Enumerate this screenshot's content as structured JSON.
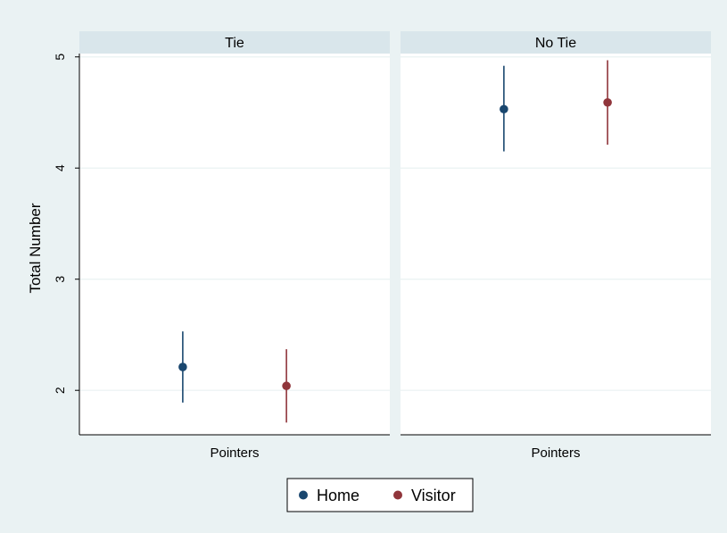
{
  "chart_data": {
    "type": "scatter",
    "subtype": "point-range",
    "panels": [
      {
        "title": "Tie",
        "xlabel": "Pointers",
        "points": [
          {
            "series": "Home",
            "y": 2.21,
            "low": 1.89,
            "high": 2.53
          },
          {
            "series": "Visitor",
            "y": 2.04,
            "low": 1.71,
            "high": 2.37
          }
        ]
      },
      {
        "title": "No Tie",
        "xlabel": "Pointers",
        "points": [
          {
            "series": "Home",
            "y": 4.53,
            "low": 4.15,
            "high": 4.92
          },
          {
            "series": "Visitor",
            "y": 4.59,
            "low": 4.21,
            "high": 4.97
          }
        ]
      }
    ],
    "ylabel": "Total Number",
    "ylim": [
      1.6,
      5.03
    ],
    "yticks": [
      "2",
      "3",
      "4",
      "5"
    ],
    "grid": true,
    "legend": {
      "placement": "bottom",
      "entries": [
        {
          "name": "Home",
          "color": "#1a476f"
        },
        {
          "name": "Visitor",
          "color": "#90353b"
        }
      ]
    }
  },
  "colors": {
    "outer_background": "#eaf2f3",
    "panel_background": "#ffffff",
    "strip_background": "#d9e6eb",
    "gridline": "#eaf2f3",
    "axis": "#000000"
  }
}
